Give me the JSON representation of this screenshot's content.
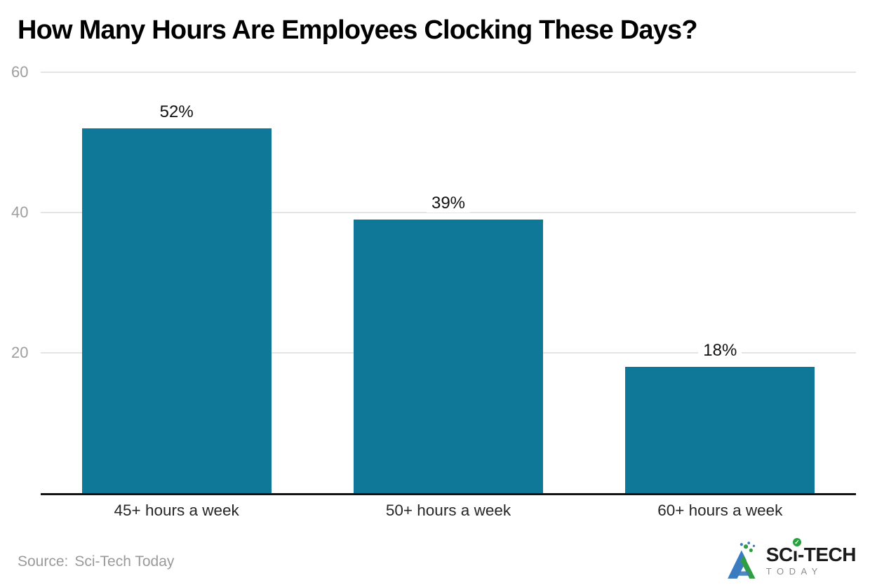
{
  "title": "How Many Hours Are Employees Clocking These Days?",
  "source": {
    "label": "Source:",
    "value": "Sci-Tech Today"
  },
  "logo": {
    "sc": "SC",
    "i": "ı",
    "check": "✓",
    "tech": "-TECH",
    "today": "TODAY"
  },
  "colors": {
    "bar": "#0f7899",
    "grid": "#e4e4e4",
    "axis": "#141414",
    "tick_label": "#9e9e9e",
    "value_label": "#111111",
    "category_label": "#262626",
    "title": "#000000",
    "source_text": "#9a9a9a",
    "logo_blue": "#3b7cc0",
    "logo_green": "#2f9e41"
  },
  "chart_data": {
    "type": "bar",
    "title": "How Many Hours Are Employees Clocking These Days?",
    "categories": [
      "45+ hours a week",
      "50+ hours a week",
      "60+ hours a week"
    ],
    "values": [
      52,
      39,
      18
    ],
    "value_labels": [
      "52%",
      "39%",
      "18%"
    ],
    "xlabel": "",
    "ylabel": "",
    "ylim": [
      0,
      60
    ],
    "yticks": [
      20,
      40,
      60
    ],
    "grid": true,
    "legend": false,
    "bar_color": "#0f7899",
    "source": "Sci-Tech Today"
  }
}
